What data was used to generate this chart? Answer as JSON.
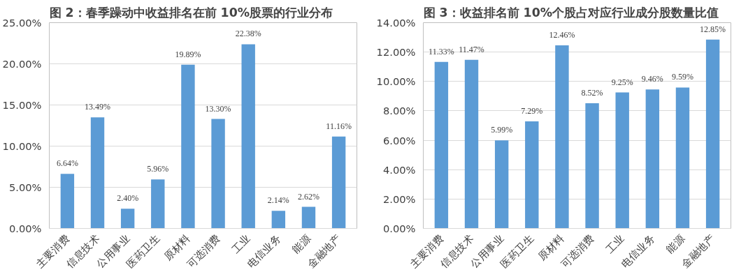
{
  "chart_data": [
    {
      "type": "bar",
      "title": "图 2：春季躁动中收益排名在前 10%股票的行业分布",
      "categories": [
        "主要消费",
        "信息技术",
        "公用事业",
        "医药卫生",
        "原材料",
        "可选消费",
        "工业",
        "电信业务",
        "能源",
        "金融地产"
      ],
      "values": [
        6.64,
        13.49,
        2.4,
        5.96,
        19.89,
        13.3,
        22.38,
        2.14,
        2.62,
        11.16
      ],
      "value_labels": [
        "6.64%",
        "13.49%",
        "2.40%",
        "5.96%",
        "19.89%",
        "13.30%",
        "22.38%",
        "2.14%",
        "2.62%",
        "11.16%"
      ],
      "color": "#5b9bd5",
      "ylim": [
        0,
        25
      ],
      "yticks": [
        {
          "value": 0,
          "label": "0.00%"
        },
        {
          "value": 5,
          "label": "5.00%"
        },
        {
          "value": 10,
          "label": "10.00%"
        },
        {
          "value": 15,
          "label": "15.00%"
        },
        {
          "value": 20,
          "label": "20.00%"
        },
        {
          "value": 25,
          "label": "25.00%"
        }
      ],
      "grid": "y"
    },
    {
      "type": "bar",
      "title": "图 3：收益排名前 10%个股占对应行业成分股数量比值",
      "categories": [
        "主要消费",
        "信息技术",
        "公用事业",
        "医药卫生",
        "原材料",
        "可选消费",
        "工业",
        "电信业务",
        "能源",
        "金融地产"
      ],
      "values": [
        11.33,
        11.47,
        5.99,
        7.29,
        12.46,
        8.52,
        9.25,
        9.46,
        9.59,
        12.85
      ],
      "value_labels": [
        "11.33%",
        "11.47%",
        "5.99%",
        "7.29%",
        "12.46%",
        "8.52%",
        "9.25%",
        "9.46%",
        "9.59%",
        "12.85%"
      ],
      "color": "#5b9bd5",
      "ylim": [
        0,
        14
      ],
      "yticks": [
        {
          "value": 0,
          "label": "0.00%"
        },
        {
          "value": 2,
          "label": "2.00%"
        },
        {
          "value": 4,
          "label": "4.00%"
        },
        {
          "value": 6,
          "label": "6.00%"
        },
        {
          "value": 8,
          "label": "8.00%"
        },
        {
          "value": 10,
          "label": "10.00%"
        },
        {
          "value": 12,
          "label": "12.00%"
        },
        {
          "value": 14,
          "label": "14.00%"
        }
      ],
      "grid": "y"
    }
  ]
}
